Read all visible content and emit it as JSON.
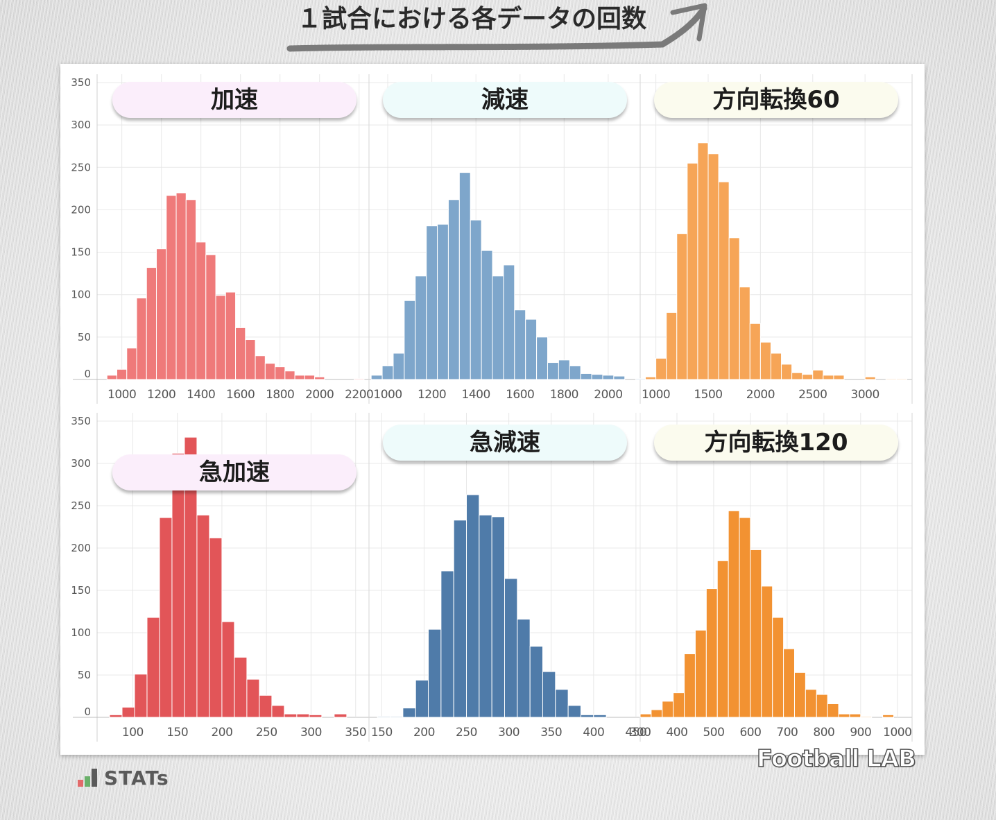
{
  "title": "１試合における各データの回数",
  "branding": {
    "stats": "STATs",
    "football_lab": "Football LAB"
  },
  "colors": {
    "pink_pill": "#fbeefb",
    "cyan_pill": "#eefbfb",
    "cream_pill": "#fbfbee",
    "grid": "#e8e8e8",
    "tick_text": "#555555"
  },
  "chart_data": [
    {
      "type": "bar",
      "title": "加速",
      "color": "#ef7a7a",
      "ylim": [
        0,
        350
      ],
      "y_ticks": [
        0,
        50,
        100,
        150,
        200,
        250,
        300,
        350
      ],
      "xlim": [
        875,
        2250
      ],
      "x_ticks": [
        1000,
        1200,
        1400,
        1600,
        1800,
        2000,
        2200
      ],
      "bin_width": 50,
      "bins_start": 925,
      "values": [
        5,
        12,
        37,
        96,
        132,
        154,
        217,
        220,
        212,
        162,
        147,
        99,
        103,
        61,
        47,
        28,
        19,
        15,
        10,
        5,
        5,
        3,
        0,
        0,
        0,
        1
      ],
      "grid": true
    },
    {
      "type": "bar",
      "title": "減速",
      "color": "#7ea6cb",
      "ylim": [
        0,
        350
      ],
      "y_ticks": [
        0,
        50,
        100,
        150,
        200,
        250,
        300,
        350
      ],
      "xlim": [
        915,
        2145
      ],
      "x_ticks": [
        1000,
        1200,
        1400,
        1600,
        1800,
        2000
      ],
      "bin_width": 50,
      "bins_start": 925,
      "values": [
        5,
        16,
        31,
        93,
        122,
        181,
        183,
        212,
        244,
        188,
        152,
        122,
        135,
        82,
        71,
        50,
        20,
        23,
        16,
        7,
        6,
        5,
        4,
        0,
        1,
        1
      ],
      "grid": true
    },
    {
      "type": "bar",
      "title": "方向転換60",
      "color": "#f6a557",
      "ylim": [
        0,
        350
      ],
      "y_ticks": [
        0,
        50,
        100,
        150,
        200,
        250,
        300,
        350
      ],
      "xlim": [
        850,
        3450
      ],
      "x_ticks": [
        1000,
        1500,
        2000,
        2500,
        3000
      ],
      "bin_width": 100,
      "bins_start": 900,
      "values": [
        3,
        25,
        79,
        172,
        255,
        279,
        266,
        233,
        167,
        109,
        66,
        44,
        31,
        18,
        8,
        6,
        11,
        5,
        5,
        0,
        0,
        3,
        0,
        1,
        1
      ],
      "grid": true
    },
    {
      "type": "bar",
      "title": "急加速",
      "color": "#e25558",
      "ylim": [
        0,
        350
      ],
      "y_ticks": [
        0,
        50,
        100,
        150,
        200,
        250,
        300,
        350
      ],
      "xlim": [
        60,
        365
      ],
      "x_ticks": [
        100,
        150,
        200,
        250,
        300,
        350
      ],
      "bin_width": 14,
      "bins_start": 74,
      "values": [
        3,
        12,
        51,
        118,
        236,
        312,
        331,
        239,
        212,
        113,
        71,
        45,
        26,
        14,
        4,
        4,
        3,
        0,
        4
      ],
      "grid": true
    },
    {
      "type": "bar",
      "title": "急減速",
      "color": "#4f7ba9",
      "ylim": [
        0,
        350
      ],
      "y_ticks": [
        0,
        50,
        100,
        150,
        200,
        250,
        300,
        350
      ],
      "xlim": [
        135,
        455
      ],
      "x_ticks": [
        150,
        200,
        250,
        300,
        350,
        400,
        450
      ],
      "bin_width": 15,
      "bins_start": 145,
      "values": [
        1,
        1,
        11,
        44,
        104,
        173,
        233,
        263,
        239,
        237,
        164,
        116,
        84,
        54,
        33,
        14,
        3,
        3
      ],
      "grid": true
    },
    {
      "type": "bar",
      "title": "方向転換120",
      "color": "#f29232",
      "ylim": [
        0,
        350
      ],
      "y_ticks": [
        0,
        50,
        100,
        150,
        200,
        250,
        300,
        350
      ],
      "xlim": [
        300,
        1040
      ],
      "x_ticks": [
        300,
        400,
        500,
        600,
        700,
        800,
        900,
        1000
      ],
      "bin_width": 30,
      "bins_start": 300,
      "values": [
        4,
        9,
        19,
        29,
        75,
        103,
        152,
        185,
        244,
        236,
        198,
        155,
        118,
        81,
        53,
        33,
        27,
        16,
        4,
        4,
        1,
        0,
        3
      ],
      "grid": true
    }
  ]
}
